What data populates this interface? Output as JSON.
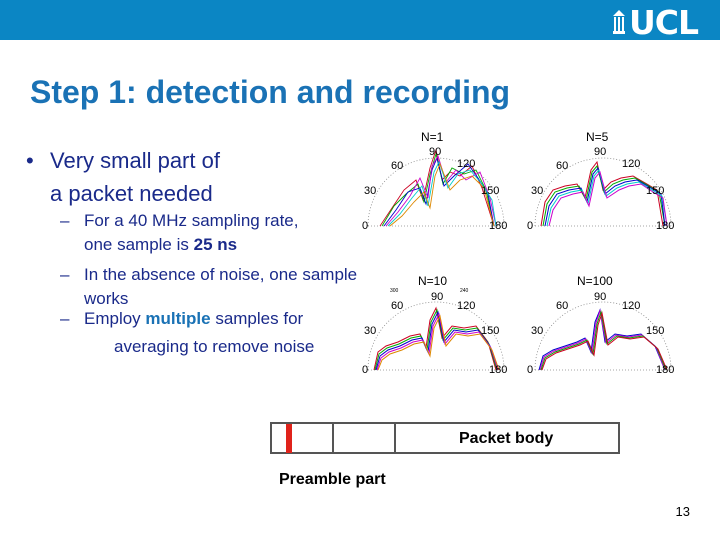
{
  "header": {
    "logo_text": "UCL",
    "logo_color": "#ffffff",
    "bar_color": "#0b86c4"
  },
  "slide": {
    "title": "Step 1: detection and recording",
    "bullet_marker": "•",
    "bullet_lines": [
      "Very small part of",
      "a packet needed"
    ],
    "dash_marker": "–",
    "sub1_line1_pre": "For a 40 MHz sampling rate,",
    "sub1_line2_pre": "one sample is ",
    "sub1_line2_bold": "25 ns",
    "sub2_line1": "In the absence of noise, one sample",
    "sub2_line2": "works",
    "sub3_line1_pre": "Employ ",
    "sub3_line1_hl": "multiple",
    "sub3_line1_post": " samples for",
    "sub3_line2": "averaging to remove noise"
  },
  "plots": [
    {
      "title": "N=1",
      "ticks": [
        "0",
        "30",
        "60",
        "90",
        "120",
        "150",
        "180"
      ]
    },
    {
      "title": "N=5",
      "ticks": [
        "0",
        "30",
        "60",
        "90",
        "120",
        "150",
        "180"
      ]
    },
    {
      "title": "N=10",
      "ticks": [
        "0",
        "30",
        "60",
        "90",
        "120",
        "150",
        "180"
      ],
      "extra": [
        "300",
        "240"
      ]
    },
    {
      "title": "N=100",
      "ticks": [
        "0",
        "30",
        "60",
        "90",
        "120",
        "150",
        "180"
      ]
    }
  ],
  "packet": {
    "body_label": "Packet body",
    "preamble_label": "Preamble part",
    "marker_color": "#e0231b"
  },
  "footer": {
    "page_number": "13"
  }
}
